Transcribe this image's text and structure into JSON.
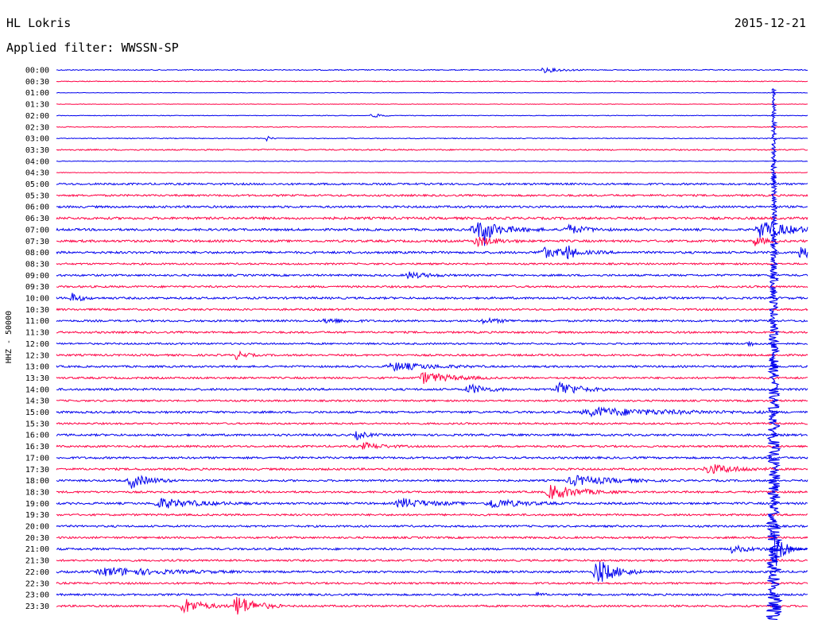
{
  "header": {
    "station": "HL Lokris",
    "date": "2015-12-21",
    "filter_label": "Applied filter: WWSSN-SP"
  },
  "colors": {
    "trace_a": "#0000ee",
    "trace_b": "#ff0044",
    "text": "#000000"
  },
  "chart_data": {
    "type": "line",
    "title": "HL Lokris",
    "ylabel": "HHZ - 50000",
    "row_labels": [
      "00:00",
      "00:30",
      "01:00",
      "01:30",
      "02:00",
      "02:30",
      "03:00",
      "03:30",
      "04:00",
      "04:30",
      "05:00",
      "05:30",
      "06:00",
      "06:30",
      "07:00",
      "07:30",
      "08:00",
      "08:30",
      "09:00",
      "09:30",
      "10:00",
      "10:30",
      "11:00",
      "11:30",
      "12:00",
      "12:30",
      "13:00",
      "13:30",
      "14:00",
      "14:30",
      "15:00",
      "15:30",
      "16:00",
      "16:30",
      "17:00",
      "17:30",
      "18:00",
      "18:30",
      "19:00",
      "19:30",
      "20:00",
      "20:30",
      "21:00",
      "21:30",
      "22:00",
      "22:30",
      "23:00",
      "23:30"
    ],
    "row_colors": [
      "blue",
      "red"
    ],
    "noise_levels": [
      0.6,
      0.5,
      0.3,
      0.3,
      0.4,
      0.5,
      0.5,
      0.8,
      0.4,
      0.4,
      1.2,
      1.2,
      1.3,
      1.5,
      1.4,
      1.4,
      1.4,
      1.1,
      1.2,
      1.2,
      1.3,
      1.2,
      1.2,
      1.2,
      1.1,
      1.2,
      1.2,
      1.2,
      1.3,
      1.1,
      1.3,
      1.1,
      1.3,
      1.2,
      1.3,
      1.3,
      1.2,
      1.2,
      1.3,
      1.2,
      1.2,
      1.2,
      1.3,
      1.2,
      1.3,
      1.2,
      1.2,
      1.2
    ],
    "events": [
      {
        "row": 0,
        "x": 0.65,
        "w": 0.02,
        "amp": 3
      },
      {
        "row": 4,
        "x": 0.42,
        "w": 0.01,
        "amp": 3
      },
      {
        "row": 6,
        "x": 0.28,
        "w": 0.005,
        "amp": 3
      },
      {
        "row": 14,
        "x": 0.56,
        "w": 0.03,
        "amp": 10
      },
      {
        "row": 14,
        "x": 0.57,
        "w": 0.005,
        "amp": 14
      },
      {
        "row": 14,
        "x": 0.68,
        "w": 0.02,
        "amp": 6
      },
      {
        "row": 14,
        "x": 0.94,
        "w": 0.03,
        "amp": 12
      },
      {
        "row": 15,
        "x": 0.56,
        "w": 0.02,
        "amp": 6
      },
      {
        "row": 15,
        "x": 0.93,
        "w": 0.01,
        "amp": 6
      },
      {
        "row": 16,
        "x": 0.65,
        "w": 0.03,
        "amp": 6
      },
      {
        "row": 16,
        "x": 0.68,
        "w": 0.005,
        "amp": 12
      },
      {
        "row": 16,
        "x": 0.99,
        "w": 0.01,
        "amp": 10
      },
      {
        "row": 18,
        "x": 0.47,
        "w": 0.02,
        "amp": 4
      },
      {
        "row": 20,
        "x": 0.02,
        "w": 0.01,
        "amp": 6
      },
      {
        "row": 22,
        "x": 0.36,
        "w": 0.02,
        "amp": 3
      },
      {
        "row": 22,
        "x": 0.57,
        "w": 0.02,
        "amp": 3
      },
      {
        "row": 24,
        "x": 0.92,
        "w": 0.005,
        "amp": 5
      },
      {
        "row": 25,
        "x": 0.24,
        "w": 0.01,
        "amp": 5
      },
      {
        "row": 26,
        "x": 0.45,
        "w": 0.04,
        "amp": 5
      },
      {
        "row": 27,
        "x": 0.49,
        "w": 0.03,
        "amp": 7
      },
      {
        "row": 28,
        "x": 0.55,
        "w": 0.02,
        "amp": 6
      },
      {
        "row": 28,
        "x": 0.67,
        "w": 0.02,
        "amp": 10
      },
      {
        "row": 30,
        "x": 0.72,
        "w": 0.08,
        "amp": 5
      },
      {
        "row": 32,
        "x": 0.4,
        "w": 0.01,
        "amp": 5
      },
      {
        "row": 33,
        "x": 0.41,
        "w": 0.02,
        "amp": 4
      },
      {
        "row": 35,
        "x": 0.87,
        "w": 0.03,
        "amp": 6
      },
      {
        "row": 36,
        "x": 0.1,
        "w": 0.02,
        "amp": 9
      },
      {
        "row": 36,
        "x": 0.69,
        "w": 0.04,
        "amp": 6
      },
      {
        "row": 37,
        "x": 0.66,
        "w": 0.03,
        "amp": 9
      },
      {
        "row": 38,
        "x": 0.14,
        "w": 0.04,
        "amp": 6
      },
      {
        "row": 38,
        "x": 0.46,
        "w": 0.03,
        "amp": 6
      },
      {
        "row": 38,
        "x": 0.58,
        "w": 0.03,
        "amp": 6
      },
      {
        "row": 42,
        "x": 0.9,
        "w": 0.02,
        "amp": 4
      },
      {
        "row": 44,
        "x": 0.07,
        "w": 0.06,
        "amp": 5
      },
      {
        "row": 44,
        "x": 0.72,
        "w": 0.02,
        "amp": 16
      },
      {
        "row": 46,
        "x": 0.64,
        "w": 0.005,
        "amp": 3
      },
      {
        "row": 47,
        "x": 0.17,
        "w": 0.02,
        "amp": 10
      },
      {
        "row": 47,
        "x": 0.24,
        "w": 0.02,
        "amp": 14
      }
    ],
    "big_event": {
      "x": 0.955,
      "start_row": 10,
      "rows": 38,
      "max_amp": 60
    }
  }
}
